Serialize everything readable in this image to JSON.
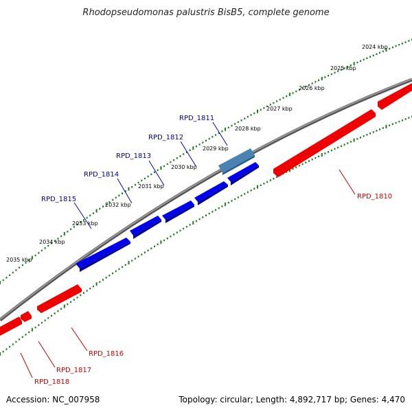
{
  "title": "Rhodopseudomonas palustris BisB5, complete genome",
  "footer": {
    "accession": "Accession: NC_007958",
    "info": "Topology: circular; Length: 4,892,717 bp; Genes: 4,470"
  },
  "colors": {
    "forward_gene": "#0000ee",
    "reverse_gene": "#ee0000",
    "selected_gene": "#4a82b4",
    "backbone": "#808080",
    "tick": "#1a7a1a",
    "forward_label": "#000099",
    "reverse_label": "#cc0000"
  },
  "kbp_markers": [
    "2024 kbp",
    "2025 kbp",
    "2026 kbp",
    "2027 kbp",
    "2028 kbp",
    "2029 kbp",
    "2030 kbp",
    "2031 kbp",
    "2032 kbp",
    "2033 kbp",
    "2034 kbp",
    "2035 kbp"
  ],
  "forward_genes": [
    {
      "id": "RPD_1811",
      "selected": true
    },
    {
      "id": "RPD_1812"
    },
    {
      "id": "RPD_1813"
    },
    {
      "id": "RPD_1814"
    },
    {
      "id": "RPD_1815"
    }
  ],
  "reverse_genes": [
    {
      "id": "RPD_1810"
    },
    {
      "id": "RPD_1816"
    },
    {
      "id": "RPD_1817"
    },
    {
      "id": "RPD_1818"
    }
  ]
}
